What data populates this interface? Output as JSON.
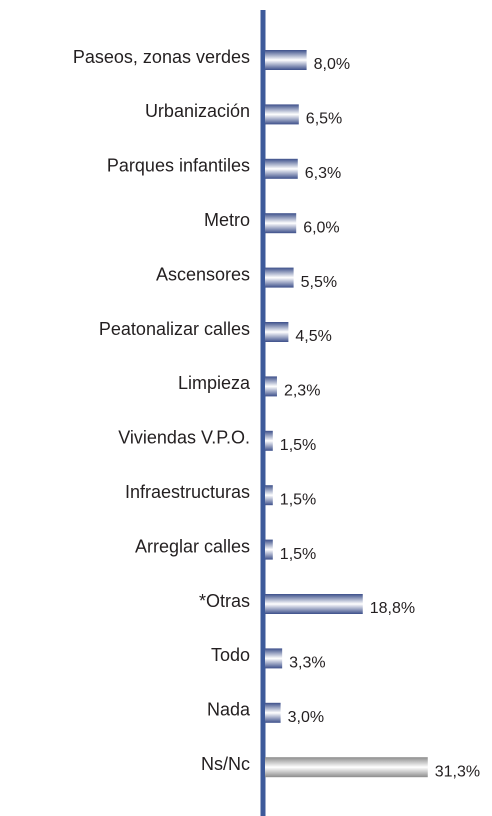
{
  "chart_data": {
    "type": "bar",
    "orientation": "horizontal",
    "categories": [
      "Paseos, zonas verdes",
      "Urbanización",
      "Parques infantiles",
      "Metro",
      "Ascensores",
      "Peatonalizar calles",
      "Limpieza",
      "Viviendas V.P.O.",
      "Infraestructuras",
      "Arreglar calles",
      "*Otras",
      "Todo",
      "Nada",
      "Ns/Nc"
    ],
    "values": [
      8.0,
      6.5,
      6.3,
      6.0,
      5.5,
      4.5,
      2.3,
      1.5,
      1.5,
      1.5,
      18.8,
      3.3,
      3.0,
      31.3
    ],
    "value_labels": [
      "8,0%",
      "6,5%",
      "6,3%",
      "6,0%",
      "5,5%",
      "4,5%",
      "2,3%",
      "1,5%",
      "1,5%",
      "1,5%",
      "18,8%",
      "3,3%",
      "3,0%",
      "31,3%"
    ],
    "colors": [
      "#3c4f8a",
      "#3c4f8a",
      "#3c4f8a",
      "#3c4f8a",
      "#3c4f8a",
      "#3c4f8a",
      "#3c4f8a",
      "#3c4f8a",
      "#3c4f8a",
      "#3c4f8a",
      "#3c4f8a",
      "#3c4f8a",
      "#3c4f8a",
      "#8c8c8c"
    ]
  }
}
